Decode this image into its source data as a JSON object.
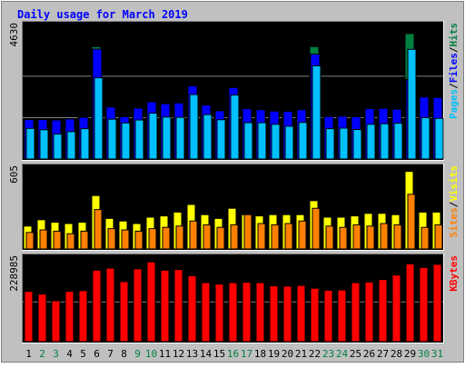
{
  "chart_data": {
    "type": "bar",
    "title": "Daily usage for March 2019",
    "categories": [
      "1",
      "2",
      "3",
      "4",
      "5",
      "6",
      "7",
      "8",
      "9",
      "10",
      "11",
      "12",
      "13",
      "14",
      "15",
      "16",
      "17",
      "18",
      "19",
      "20",
      "21",
      "22",
      "23",
      "24",
      "25",
      "26",
      "27",
      "28",
      "29",
      "30",
      "31"
    ],
    "weekend_days": [
      "2",
      "3",
      "9",
      "10",
      "16",
      "17",
      "23",
      "24",
      "30",
      "31"
    ],
    "panels": [
      {
        "id": "hits-files-pages",
        "ymax": 4630,
        "ymax_label": "4630",
        "legend": [
          "Pages",
          "/",
          "Files",
          "/",
          "Hits"
        ],
        "series": [
          {
            "name": "Hits",
            "color": "#008040",
            "values": [
              1460,
              1460,
              1440,
              1480,
              1540,
              4150,
              1920,
              1560,
              1880,
              2110,
              2040,
              2070,
              2700,
              1990,
              1780,
              2640,
              1860,
              1820,
              1770,
              1760,
              1820,
              4150,
              1570,
              1580,
              1560,
              1860,
              1870,
              1840,
              4630,
              2290,
              2270
            ]
          },
          {
            "name": "Files",
            "color": "#0000ff",
            "values": [
              1460,
              1460,
              1440,
              1480,
              1540,
              4060,
              1920,
              1560,
              1880,
              2110,
              2040,
              2070,
              2700,
              1990,
              1780,
              2640,
              1860,
              1820,
              1770,
              1760,
              1820,
              3870,
              1570,
              1580,
              1560,
              1860,
              1870,
              1840,
              2940,
              2290,
              2270
            ]
          },
          {
            "name": "Pages",
            "color": "#00c0ff",
            "values": [
              1130,
              1080,
              920,
              1010,
              1120,
              3000,
              1470,
              1330,
              1440,
              1690,
              1550,
              1540,
              2380,
              1640,
              1450,
              2360,
              1340,
              1340,
              1280,
              1210,
              1350,
              3440,
              1120,
              1140,
              1090,
              1280,
              1300,
              1320,
              4050,
              1530,
              1500
            ]
          }
        ]
      },
      {
        "id": "visits-sites",
        "ymax": 605,
        "ymax_label": "605",
        "legend": [
          "Sites",
          "/",
          "Visits"
        ],
        "series": [
          {
            "name": "Visits",
            "color": "#ffff00",
            "values": [
              180,
              230,
              210,
              200,
              210,
              420,
              240,
              220,
              200,
              250,
              260,
              290,
              350,
              270,
              240,
              320,
              270,
              260,
              270,
              270,
              270,
              380,
              250,
              250,
              260,
              280,
              280,
              270,
              610,
              290,
              290
            ]
          },
          {
            "name": "Sites",
            "color": "#ff8000",
            "values": [
              130,
              150,
              140,
              120,
              140,
              310,
              160,
              150,
              140,
              160,
              170,
              180,
              220,
              190,
              170,
              190,
              270,
              200,
              190,
              200,
              220,
              320,
              180,
              170,
              190,
              180,
              200,
              190,
              430,
              170,
              190
            ]
          }
        ]
      },
      {
        "id": "kbytes",
        "ymax": 228985,
        "ymax_label": "228985",
        "legend": [
          "KBytes"
        ],
        "series": [
          {
            "name": "KBytes",
            "color": "#ff0000",
            "values": [
              145000,
              137000,
              118000,
              145000,
              147000,
              206000,
              212000,
              173000,
              210000,
              230000,
              206000,
              208000,
              190000,
              170000,
              166000,
              170000,
              171000,
              170000,
              161000,
              160000,
              162000,
              154000,
              148000,
              149000,
              170000,
              172000,
              179000,
              192000,
              224000,
              214000,
              223000
            ]
          }
        ]
      }
    ],
    "colors": {
      "background": "#c0c0c0",
      "title": "#0000ff",
      "weekday_label": "#000000",
      "weekend_label": "#008040",
      "pages": "#00c0ff",
      "files": "#0000ff",
      "hits": "#008040",
      "visits": "#ffff00",
      "sites": "#ff8000",
      "kbytes": "#ff0000"
    }
  }
}
